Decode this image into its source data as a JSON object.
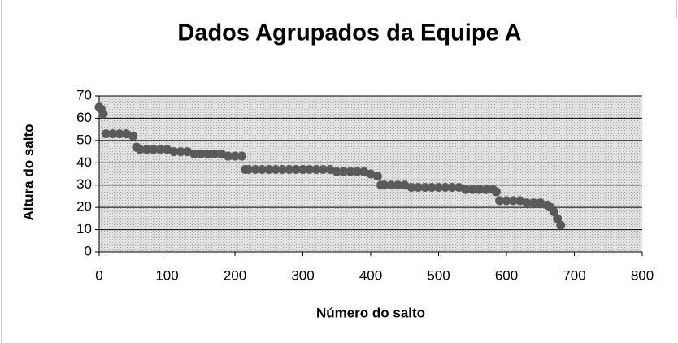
{
  "chart_data": {
    "type": "scatter",
    "title": "Dados Agrupados da Equipe A",
    "xlabel": "Número do salto",
    "ylabel": "Altura do salto",
    "x": [
      0,
      3,
      6,
      10,
      20,
      30,
      40,
      50,
      55,
      60,
      70,
      80,
      90,
      100,
      110,
      120,
      130,
      140,
      150,
      160,
      170,
      180,
      190,
      200,
      210,
      215,
      220,
      230,
      240,
      250,
      260,
      270,
      280,
      290,
      300,
      310,
      320,
      330,
      340,
      350,
      360,
      370,
      380,
      390,
      400,
      410,
      415,
      420,
      430,
      440,
      450,
      460,
      470,
      480,
      490,
      500,
      510,
      520,
      530,
      540,
      550,
      560,
      570,
      580,
      585,
      590,
      600,
      610,
      620,
      630,
      640,
      650,
      660,
      665,
      670,
      675,
      680
    ],
    "values": [
      65,
      64,
      62,
      53,
      53,
      53,
      53,
      52,
      47,
      46,
      46,
      46,
      46,
      46,
      45,
      45,
      45,
      44,
      44,
      44,
      44,
      44,
      43,
      43,
      43,
      37,
      37,
      37,
      37,
      37,
      37,
      37,
      37,
      37,
      37,
      37,
      37,
      37,
      37,
      36,
      36,
      36,
      36,
      36,
      35,
      34,
      30,
      30,
      30,
      30,
      30,
      29,
      29,
      29,
      29,
      29,
      29,
      29,
      29,
      28,
      28,
      28,
      28,
      28,
      27,
      23,
      23,
      23,
      23,
      22,
      22,
      22,
      21,
      20,
      18,
      15,
      12
    ],
    "color": "#5a5a5a",
    "xlim": [
      0,
      800
    ],
    "xticks": [
      0,
      100,
      200,
      300,
      400,
      500,
      600,
      700,
      800
    ],
    "ylim": [
      0,
      70
    ],
    "yticks": [
      0,
      10,
      20,
      30,
      40,
      50,
      60,
      70
    ],
    "grid": true
  }
}
